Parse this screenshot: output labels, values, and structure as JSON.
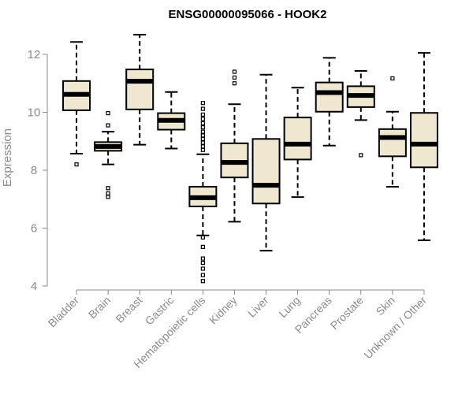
{
  "chart_data": {
    "type": "boxplot",
    "title": "ENSG00000095066 - HOOK2",
    "xlabel": "",
    "ylabel": "Expression",
    "ylim": [
      4,
      12.6
    ],
    "yticks": [
      4,
      6,
      8,
      10,
      12
    ],
    "box_fill": "#efe7cf",
    "categories": [
      "Bladder",
      "Brain",
      "Breast",
      "Gastric",
      "Hematopoietic cells",
      "Kidney",
      "Liver",
      "Lung",
      "Pancreas",
      "Prostate",
      "Skin",
      "Unknown / Other"
    ],
    "boxes": [
      {
        "name": "Bladder",
        "whisker_low": 8.57,
        "q1": 10.07,
        "median": 10.62,
        "q3": 11.08,
        "whisker_high": 12.43,
        "outliers": [
          8.2
        ]
      },
      {
        "name": "Brain",
        "whisker_low": 8.2,
        "q1": 8.67,
        "median": 8.82,
        "q3": 8.97,
        "whisker_high": 9.33,
        "outliers": [
          9.55,
          9.97,
          7.38,
          7.2,
          7.08
        ]
      },
      {
        "name": "Breast",
        "whisker_low": 8.88,
        "q1": 10.1,
        "median": 11.07,
        "q3": 11.48,
        "whisker_high": 12.68,
        "outliers": []
      },
      {
        "name": "Gastric",
        "whisker_low": 8.75,
        "q1": 9.4,
        "median": 9.72,
        "q3": 9.97,
        "whisker_high": 10.7,
        "outliers": []
      },
      {
        "name": "Hematopoietic cells",
        "whisker_low": 5.75,
        "q1": 6.75,
        "median": 7.05,
        "q3": 7.43,
        "whisker_high": 8.55,
        "outliers": [
          8.7,
          8.82,
          8.95,
          9.08,
          9.2,
          9.33,
          9.48,
          9.62,
          9.77,
          9.92,
          10.12,
          10.32,
          5.68,
          5.35,
          4.95,
          4.8,
          4.6,
          4.38,
          4.17
        ]
      },
      {
        "name": "Kidney",
        "whisker_low": 6.22,
        "q1": 7.75,
        "median": 8.27,
        "q3": 8.93,
        "whisker_high": 10.28,
        "outliers": [
          11.0,
          11.2,
          11.4
        ]
      },
      {
        "name": "Liver",
        "whisker_low": 5.22,
        "q1": 6.85,
        "median": 7.48,
        "q3": 9.08,
        "whisker_high": 11.3,
        "outliers": []
      },
      {
        "name": "Lung",
        "whisker_low": 7.07,
        "q1": 8.37,
        "median": 8.9,
        "q3": 9.82,
        "whisker_high": 10.85,
        "outliers": []
      },
      {
        "name": "Pancreas",
        "whisker_low": 8.85,
        "q1": 10.02,
        "median": 10.68,
        "q3": 11.03,
        "whisker_high": 11.88,
        "outliers": []
      },
      {
        "name": "Prostate",
        "whisker_low": 9.73,
        "q1": 10.18,
        "median": 10.58,
        "q3": 10.9,
        "whisker_high": 11.43,
        "outliers": [
          8.52
        ]
      },
      {
        "name": "Skin",
        "whisker_low": 7.43,
        "q1": 8.48,
        "median": 9.13,
        "q3": 9.42,
        "whisker_high": 10.02,
        "outliers": [
          11.17
        ]
      },
      {
        "name": "Unknown / Other",
        "whisker_low": 5.58,
        "q1": 8.1,
        "median": 8.9,
        "q3": 9.98,
        "whisker_high": 12.05,
        "outliers": []
      }
    ]
  }
}
